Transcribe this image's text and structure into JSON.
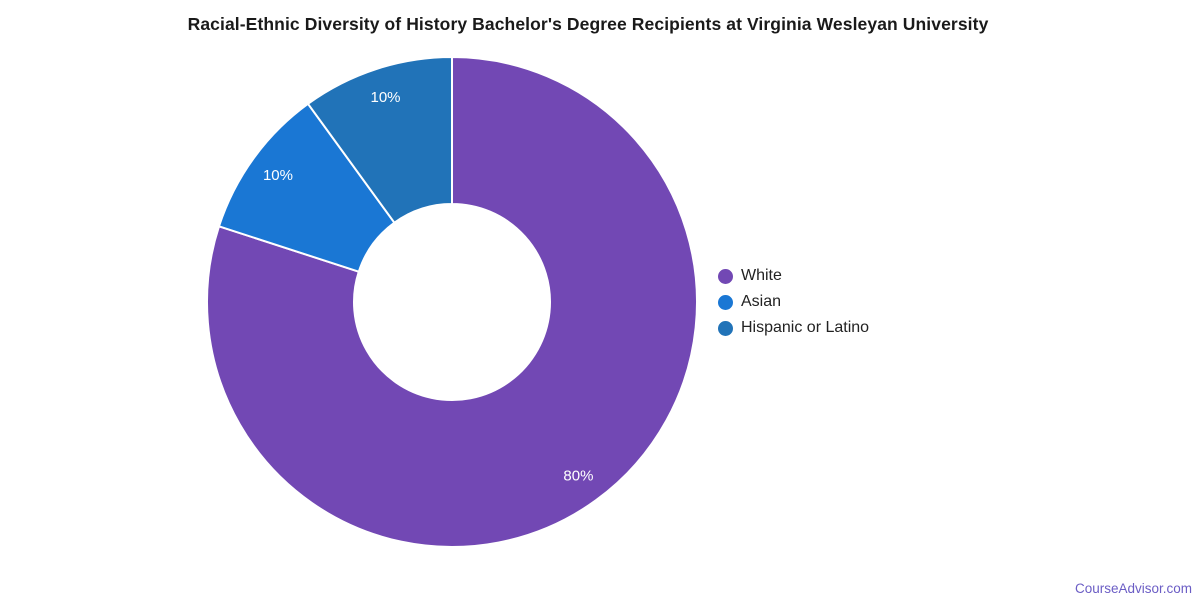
{
  "page": {
    "background": "#ffffff"
  },
  "chart_data": {
    "type": "pie",
    "subtype": "donut",
    "title": "Racial-Ethnic Diversity of History Bachelor's Degree Recipients at Virginia Wesleyan University",
    "categories": [
      "White",
      "Asian",
      "Hispanic or Latino"
    ],
    "values": [
      80,
      10,
      10
    ],
    "unit": "%",
    "slice_labels": [
      "80%",
      "10%",
      "10%"
    ],
    "colors": [
      "#7248b4",
      "#1a77d4",
      "#2173b8"
    ],
    "slice_label_color": "#ffffff",
    "slice_border_color": "#ffffff",
    "start_angle_deg": 0,
    "direction": "clockwise",
    "inner_radius_ratio": 0.4,
    "legend_position": "right",
    "legend_text_color": "#222222",
    "grid": false
  },
  "footer": {
    "link_label": "CourseAdvisor.com",
    "link_color": "#6b5dc5"
  }
}
